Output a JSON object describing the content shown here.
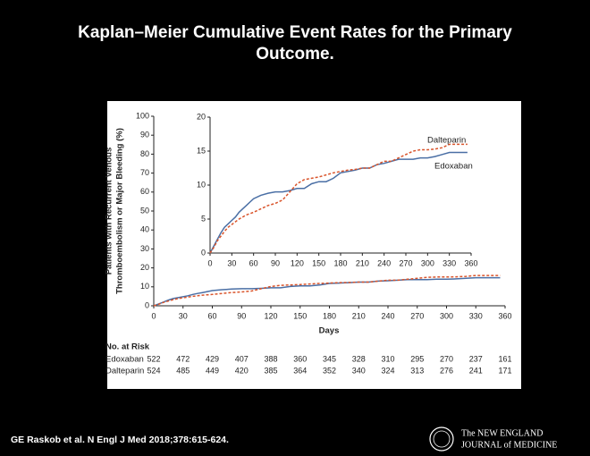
{
  "chart_data": {
    "type": "line",
    "title": [
      "Kaplan–Meier Cumulative Event Rates for the Primary",
      "Outcome."
    ],
    "ylabel": [
      "Patients with Recurrent Venous",
      "Thromboembolism or Major Bleeding (%)"
    ],
    "xlabel": "Days",
    "x": [
      0,
      5,
      10,
      15,
      20,
      25,
      30,
      35,
      40,
      45,
      50,
      55,
      60,
      70,
      80,
      90,
      100,
      110,
      120,
      130,
      140,
      150,
      160,
      170,
      180,
      190,
      200,
      210,
      220,
      230,
      240,
      250,
      260,
      270,
      280,
      290,
      300,
      310,
      320,
      330,
      340,
      355
    ],
    "series": [
      {
        "name": "Edoxaban",
        "color": "#4a6fa5",
        "dashed": false,
        "values": [
          0,
          1,
          2,
          3,
          3.8,
          4.3,
          4.8,
          5.3,
          6,
          6.5,
          7,
          7.5,
          8,
          8.5,
          8.8,
          9,
          9,
          9.2,
          9.5,
          9.5,
          10.2,
          10.5,
          10.5,
          11,
          11.8,
          12,
          12.2,
          12.5,
          12.5,
          13,
          13.2,
          13.5,
          13.8,
          13.8,
          13.8,
          14,
          14,
          14.2,
          14.5,
          14.8,
          14.8,
          14.8
        ]
      },
      {
        "name": "Dalteparin",
        "color": "#d9542b",
        "dashed": true,
        "values": [
          0,
          0.8,
          1.8,
          2.5,
          3.2,
          3.8,
          4.2,
          4.6,
          5,
          5.3,
          5.6,
          5.8,
          6,
          6.5,
          7,
          7.3,
          7.8,
          9,
          10.2,
          10.8,
          11,
          11.2,
          11.5,
          11.8,
          12,
          12.2,
          12.3,
          12.5,
          12.5,
          13,
          13.5,
          13.5,
          14,
          14.5,
          15,
          15.2,
          15.2,
          15.3,
          15.5,
          16,
          16,
          16
        ]
      }
    ],
    "xlim": [
      0,
      360
    ],
    "ylim": [
      0,
      100
    ],
    "xticks": [
      0,
      30,
      60,
      90,
      120,
      150,
      180,
      210,
      240,
      270,
      300,
      330,
      360
    ],
    "yticks": [
      0,
      10,
      20,
      30,
      40,
      50,
      60,
      70,
      80,
      90,
      100
    ],
    "inset": {
      "xlim": [
        0,
        360
      ],
      "ylim": [
        0,
        20
      ],
      "xticks": [
        0,
        30,
        60,
        90,
        120,
        150,
        180,
        210,
        240,
        270,
        300,
        330,
        360
      ],
      "yticks": [
        0,
        5,
        10,
        15,
        20
      ]
    },
    "risk_table": {
      "title": "No. at Risk",
      "rows": [
        {
          "name": "Edoxaban",
          "values": [
            522,
            472,
            429,
            407,
            388,
            360,
            345,
            328,
            310,
            295,
            270,
            237,
            161
          ]
        },
        {
          "name": "Dalteparin",
          "values": [
            524,
            485,
            449,
            420,
            385,
            364,
            352,
            340,
            324,
            313,
            276,
            241,
            171
          ]
        }
      ]
    }
  },
  "footer": {
    "citation": "GE Raskob et al. N Engl J Med 2018;378:615-624.",
    "logo": [
      "The NEW ENGLAND",
      "JOURNAL of MEDICINE"
    ]
  }
}
